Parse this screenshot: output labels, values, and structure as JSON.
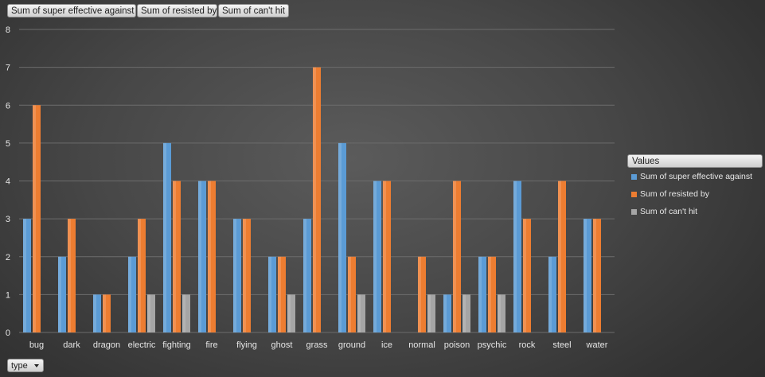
{
  "filter_buttons": [
    {
      "label": "Sum of super effective against"
    },
    {
      "label": "Sum of resisted by"
    },
    {
      "label": "Sum of can't hit"
    }
  ],
  "legend": {
    "title": "Values"
  },
  "axis_field": {
    "label": "type"
  },
  "colors": {
    "super_effective": "#5b9bd5",
    "resisted": "#ed7d31",
    "cant_hit": "#a5a5a5",
    "gridline": "#6c6c6c"
  },
  "chart_data": {
    "type": "bar",
    "title": "",
    "xlabel": "",
    "ylabel": "",
    "ylim": [
      0,
      8
    ],
    "yticks": [
      0,
      1,
      2,
      3,
      4,
      5,
      6,
      7,
      8
    ],
    "grid": true,
    "legend_position": "right",
    "categories": [
      "bug",
      "dark",
      "dragon",
      "electric",
      "fighting",
      "fire",
      "flying",
      "ghost",
      "grass",
      "ground",
      "ice",
      "normal",
      "poison",
      "psychic",
      "rock",
      "steel",
      "water"
    ],
    "series": [
      {
        "name": "Sum of super effective against",
        "values": [
          3,
          2,
          1,
          2,
          5,
          4,
          3,
          2,
          3,
          5,
          4,
          0,
          1,
          2,
          4,
          2,
          3
        ]
      },
      {
        "name": "Sum of resisted by",
        "values": [
          6,
          3,
          1,
          3,
          4,
          4,
          3,
          2,
          7,
          2,
          4,
          2,
          4,
          2,
          3,
          4,
          3
        ]
      },
      {
        "name": "Sum of can't hit",
        "values": [
          0,
          0,
          0,
          1,
          1,
          0,
          0,
          1,
          0,
          1,
          0,
          1,
          1,
          1,
          0,
          0,
          0
        ]
      }
    ]
  }
}
